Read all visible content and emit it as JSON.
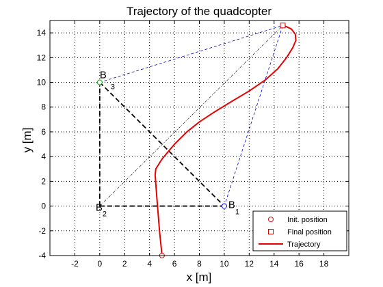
{
  "chart_data": {
    "type": "line",
    "title": "Trajectory of the quadcopter",
    "xlabel": "x [m]",
    "ylabel": "y [m]",
    "xlim": [
      -4,
      20
    ],
    "ylim": [
      -4,
      15
    ],
    "xticks": [
      -2,
      0,
      2,
      4,
      6,
      8,
      10,
      12,
      14,
      16,
      18
    ],
    "yticks": [
      -4,
      -2,
      0,
      2,
      4,
      6,
      8,
      10,
      12,
      14
    ],
    "grid": true,
    "legend_position": "bottom-right",
    "colors": {
      "trajectory": "#e60000",
      "blue_links": "#0000cc",
      "black_links": "#000000",
      "init_marker": "#dd0000",
      "final_marker": "#dd0000",
      "b3_marker": "#00aa00",
      "b1_marker": "#0000cc"
    },
    "nodes": [
      {
        "id": "B1",
        "label": "B",
        "sub": "1",
        "x": 10,
        "y": 0
      },
      {
        "id": "B2",
        "label": "B",
        "sub": "2",
        "x": 0,
        "y": 0
      },
      {
        "id": "B3",
        "label": "B",
        "sub": "3",
        "x": 0,
        "y": 10
      }
    ],
    "init_position": {
      "x": 5,
      "y": -4
    },
    "final_position": {
      "x": 14.7,
      "y": 14.6
    },
    "dashed_black_lines": [
      [
        [
          0,
          0
        ],
        [
          10,
          0
        ]
      ],
      [
        [
          0,
          0
        ],
        [
          0,
          10
        ]
      ],
      [
        [
          0,
          10
        ],
        [
          10,
          0
        ]
      ]
    ],
    "thin_black_lines": [
      [
        [
          0,
          0
        ],
        [
          14.7,
          14.6
        ]
      ]
    ],
    "dashed_blue_lines": [
      [
        [
          0,
          10
        ],
        [
          14.7,
          14.6
        ]
      ],
      [
        [
          10,
          0
        ],
        [
          14.7,
          14.6
        ]
      ]
    ],
    "series": [
      {
        "name": "Trajectory",
        "x": [
          5.0,
          4.8,
          4.6,
          4.45,
          4.5,
          5.0,
          6.0,
          7.0,
          8.0,
          9.2,
          10.5,
          12.0,
          13.3,
          14.3,
          15.0,
          15.5,
          15.75,
          15.7,
          15.4,
          15.0,
          14.7
        ],
        "y": [
          -4.0,
          -2.0,
          0.5,
          2.5,
          3.0,
          3.8,
          5.0,
          6.0,
          6.8,
          7.6,
          8.4,
          9.3,
          10.2,
          11.1,
          12.0,
          12.8,
          13.4,
          13.9,
          14.3,
          14.5,
          14.6
        ]
      }
    ],
    "legend": [
      {
        "marker": "circle",
        "label": "Init. position"
      },
      {
        "marker": "square",
        "label": "Final position"
      },
      {
        "marker": "line",
        "label": "Trajectory"
      }
    ]
  }
}
